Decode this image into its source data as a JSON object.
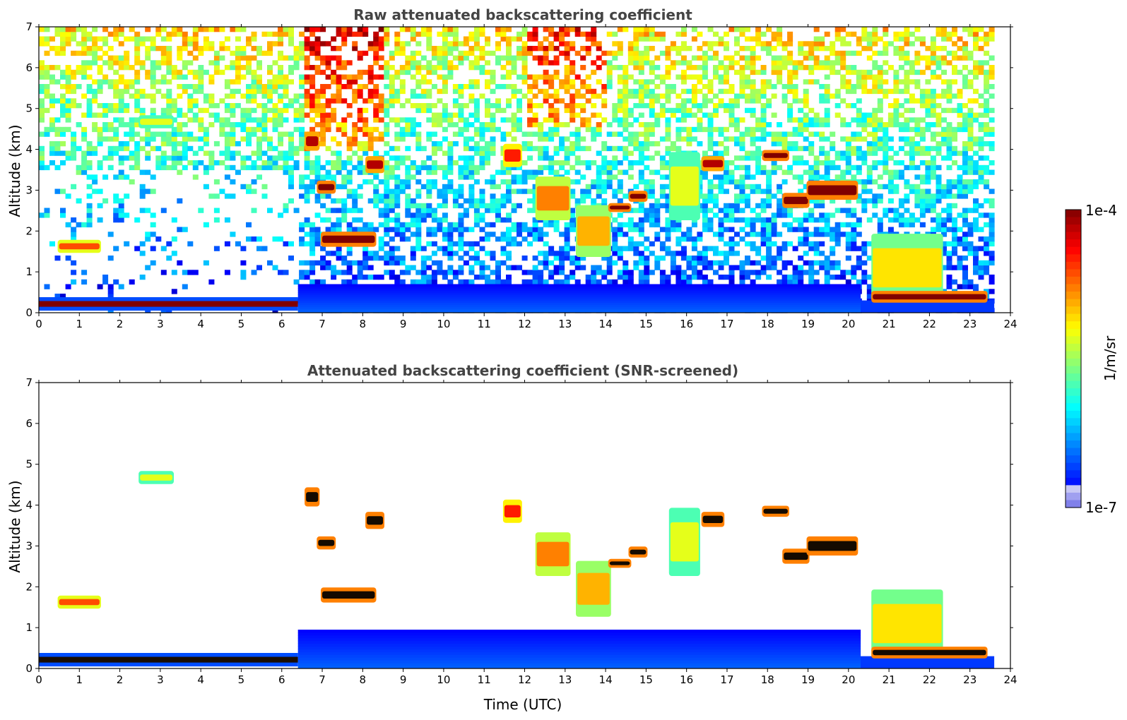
{
  "chart_data": {
    "type": "heatmap",
    "xlabel": "Time (UTC)",
    "x_ticks": [
      "0",
      "1",
      "2",
      "3",
      "4",
      "5",
      "6",
      "7",
      "8",
      "9",
      "10",
      "11",
      "12",
      "13",
      "14",
      "15",
      "16",
      "17",
      "18",
      "19",
      "20",
      "21",
      "22",
      "23",
      "24"
    ],
    "xlim": [
      0,
      24
    ],
    "y_ticks": [
      "0",
      "1",
      "2",
      "3",
      "4",
      "5",
      "6",
      "7"
    ],
    "ylim": [
      0,
      7
    ],
    "panels": [
      {
        "title": "Raw attenuated backscattering coefficient",
        "ylabel": "Altitude (km)",
        "background": "noisy",
        "data_end_hour": 23.6,
        "features": [
          {
            "kind": "boundary_layer",
            "t0": 0,
            "t1": 6.4,
            "z0": 0.05,
            "z1": 0.38,
            "level": 1.0
          },
          {
            "kind": "aerosol_layer",
            "t0": 6.4,
            "t1": 20.3,
            "z0": 0.0,
            "z1": 0.7,
            "level": 0.15
          },
          {
            "kind": "cloud",
            "t0": 7.0,
            "t1": 8.3,
            "z0": 1.65,
            "z1": 1.95,
            "level": 1.0
          },
          {
            "kind": "cloud",
            "t0": 6.9,
            "t1": 7.3,
            "z0": 2.95,
            "z1": 3.2,
            "level": 1.0
          },
          {
            "kind": "cloud",
            "t0": 6.6,
            "t1": 6.9,
            "z0": 4.0,
            "z1": 4.4,
            "level": 0.95
          },
          {
            "kind": "cloud",
            "t0": 8.1,
            "t1": 8.5,
            "z0": 3.45,
            "z1": 3.8,
            "level": 0.95
          },
          {
            "kind": "cloud",
            "t0": 11.5,
            "t1": 11.9,
            "z0": 3.6,
            "z1": 4.1,
            "level": 0.85
          },
          {
            "kind": "cloud",
            "t0": 12.3,
            "t1": 13.1,
            "z0": 2.3,
            "z1": 3.3,
            "level": 0.75
          },
          {
            "kind": "cloud",
            "t0": 13.3,
            "t1": 14.1,
            "z0": 1.4,
            "z1": 2.6,
            "level": 0.7
          },
          {
            "kind": "cloud",
            "t0": 14.1,
            "t1": 14.6,
            "z0": 2.5,
            "z1": 2.65,
            "level": 1.0
          },
          {
            "kind": "cloud",
            "t0": 14.6,
            "t1": 15.0,
            "z0": 2.75,
            "z1": 2.95,
            "level": 1.0
          },
          {
            "kind": "cloud",
            "t0": 15.6,
            "t1": 16.3,
            "z0": 2.3,
            "z1": 3.9,
            "level": 0.6
          },
          {
            "kind": "cloud",
            "t0": 16.4,
            "t1": 16.9,
            "z0": 3.5,
            "z1": 3.8,
            "level": 0.95
          },
          {
            "kind": "cloud",
            "t0": 17.9,
            "t1": 18.5,
            "z0": 3.75,
            "z1": 3.95,
            "level": 1.0
          },
          {
            "kind": "cloud",
            "t0": 18.4,
            "t1": 19.0,
            "z0": 2.6,
            "z1": 2.9,
            "level": 1.0
          },
          {
            "kind": "cloud",
            "t0": 19.0,
            "t1": 20.2,
            "z0": 2.8,
            "z1": 3.2,
            "level": 1.0
          },
          {
            "kind": "cloud",
            "t0": 0.5,
            "t1": 1.5,
            "z0": 1.5,
            "z1": 1.75,
            "level": 0.8
          },
          {
            "kind": "cloud",
            "t0": 2.5,
            "t1": 3.3,
            "z0": 4.55,
            "z1": 4.8,
            "level": 0.6
          },
          {
            "kind": "cloud",
            "t0": 20.6,
            "t1": 22.3,
            "z0": 0.3,
            "z1": 1.9,
            "level": 0.65
          },
          {
            "kind": "cloud",
            "t0": 20.6,
            "t1": 23.4,
            "z0": 0.28,
            "z1": 0.5,
            "level": 1.0
          }
        ]
      },
      {
        "title": "Attenuated backscattering coefficient (SNR-screened)",
        "ylabel": "Altitude (km)",
        "background": "clear",
        "data_end_hour": 23.6,
        "features": [
          {
            "kind": "boundary_layer",
            "t0": 0,
            "t1": 6.4,
            "z0": 0.05,
            "z1": 0.38,
            "level": 1.0
          },
          {
            "kind": "aerosol_layer",
            "t0": 6.4,
            "t1": 20.3,
            "z0": 0.0,
            "z1": 0.95,
            "level": 0.15
          },
          {
            "kind": "cloud",
            "t0": 7.0,
            "t1": 8.3,
            "z0": 1.65,
            "z1": 1.95,
            "level": 1.0
          },
          {
            "kind": "cloud",
            "t0": 6.9,
            "t1": 7.3,
            "z0": 2.95,
            "z1": 3.2,
            "level": 1.0
          },
          {
            "kind": "cloud",
            "t0": 6.6,
            "t1": 6.9,
            "z0": 4.0,
            "z1": 4.4,
            "level": 1.0
          },
          {
            "kind": "cloud",
            "t0": 8.1,
            "t1": 8.5,
            "z0": 3.45,
            "z1": 3.8,
            "level": 1.0
          },
          {
            "kind": "cloud",
            "t0": 11.5,
            "t1": 11.9,
            "z0": 3.6,
            "z1": 4.1,
            "level": 0.85
          },
          {
            "kind": "cloud",
            "t0": 12.3,
            "t1": 13.1,
            "z0": 2.3,
            "z1": 3.3,
            "level": 0.75
          },
          {
            "kind": "cloud",
            "t0": 13.3,
            "t1": 14.1,
            "z0": 1.3,
            "z1": 2.6,
            "level": 0.7
          },
          {
            "kind": "cloud",
            "t0": 14.1,
            "t1": 14.6,
            "z0": 2.5,
            "z1": 2.65,
            "level": 1.0
          },
          {
            "kind": "cloud",
            "t0": 14.6,
            "t1": 15.0,
            "z0": 2.75,
            "z1": 2.95,
            "level": 1.0
          },
          {
            "kind": "cloud",
            "t0": 15.6,
            "t1": 16.3,
            "z0": 2.3,
            "z1": 3.9,
            "level": 0.6
          },
          {
            "kind": "cloud",
            "t0": 16.4,
            "t1": 16.9,
            "z0": 3.5,
            "z1": 3.8,
            "level": 1.0
          },
          {
            "kind": "cloud",
            "t0": 17.9,
            "t1": 18.5,
            "z0": 3.75,
            "z1": 3.95,
            "level": 1.0
          },
          {
            "kind": "cloud",
            "t0": 18.4,
            "t1": 19.0,
            "z0": 2.6,
            "z1": 2.9,
            "level": 1.0
          },
          {
            "kind": "cloud",
            "t0": 19.0,
            "t1": 20.2,
            "z0": 2.8,
            "z1": 3.2,
            "level": 1.0
          },
          {
            "kind": "cloud",
            "t0": 0.5,
            "t1": 1.5,
            "z0": 1.5,
            "z1": 1.75,
            "level": 0.8
          },
          {
            "kind": "cloud",
            "t0": 2.5,
            "t1": 3.3,
            "z0": 4.55,
            "z1": 4.8,
            "level": 0.6
          },
          {
            "kind": "cloud",
            "t0": 20.6,
            "t1": 22.3,
            "z0": 0.3,
            "z1": 1.9,
            "level": 0.65
          },
          {
            "kind": "cloud",
            "t0": 20.6,
            "t1": 23.4,
            "z0": 0.28,
            "z1": 0.5,
            "level": 1.0
          }
        ]
      }
    ],
    "colorbar": {
      "label": "1/m/sr",
      "max_label": "1e-4",
      "min_label": "1e-7",
      "scale": "log",
      "colormap": "jet"
    }
  }
}
